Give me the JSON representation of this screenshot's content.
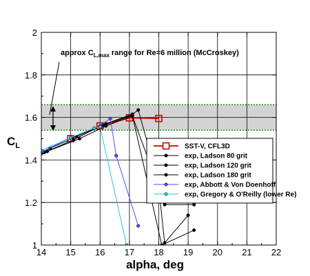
{
  "chart_data": {
    "type": "line",
    "title": "",
    "xlabel": "alpha, deg",
    "ylabel": "C",
    "ylabel_sub": "L",
    "xlim": [
      14,
      22
    ],
    "ylim": [
      1,
      2
    ],
    "x_ticks": [
      "14",
      "15",
      "16",
      "17",
      "18",
      "19",
      "20",
      "21",
      "22"
    ],
    "y_ticks": [
      "1",
      "1.2",
      "1.4",
      "1.6",
      "1.8",
      "2"
    ],
    "grid": true,
    "legend_position": "lower-right",
    "annotation": {
      "text_before": "approx C",
      "text_sub": "L,max",
      "text_after": " range for Re=6 million (McCroskey)",
      "band": [
        1.54,
        1.66
      ],
      "band_color": "#d3d3d3",
      "band_line_color": "#1ea01e"
    },
    "series": [
      {
        "name": "SST-V, CFL3D",
        "color": "#cc0000",
        "marker": "square",
        "x": [
          15.0,
          16.0,
          17.0,
          18.0
        ],
        "y": [
          1.5,
          1.56,
          1.598,
          1.595
        ]
      },
      {
        "name": "exp, Ladson 80 grit",
        "color": "#000000",
        "marker": "circle",
        "x": [
          14.0,
          14.3,
          15.2,
          16.2,
          17.1,
          17.3,
          18.2,
          19.2
        ],
        "y": [
          1.43,
          1.455,
          1.51,
          1.57,
          1.615,
          1.635,
          1.19,
          1.19
        ]
      },
      {
        "name": "exp, Ladson 120 grit",
        "color": "#000000",
        "marker": "circle",
        "x": [
          14.2,
          15.3,
          16.2,
          17.1,
          18.0,
          18.2,
          19.0
        ],
        "y": [
          1.44,
          1.5,
          1.56,
          1.607,
          1.27,
          1.01,
          1.14
        ]
      },
      {
        "name": "exp, Ladson 180 grit",
        "color": "#000000",
        "marker": "circle",
        "x": [
          14.1,
          15.1,
          16.1,
          17.1,
          18.1,
          19.2
        ],
        "y": [
          1.435,
          1.495,
          1.565,
          1.61,
          1.0,
          1.07
        ]
      },
      {
        "name": "exp, Abbott & Von Doenhoff",
        "color": "#4d4dff",
        "marker": "circle",
        "x": [
          14.05,
          15.0,
          16.0,
          16.35,
          16.55,
          17.3
        ],
        "y": [
          1.44,
          1.505,
          1.56,
          1.595,
          1.42,
          1.09
        ]
      },
      {
        "name": "exp, Gregory & O'Reilly (lower Re)",
        "color": "#2cc2e8",
        "marker": "circle",
        "x": [
          14.0,
          15.0,
          15.8,
          16.0,
          16.9
        ],
        "y": [
          1.445,
          1.505,
          1.55,
          1.555,
          1.0
        ]
      }
    ]
  }
}
